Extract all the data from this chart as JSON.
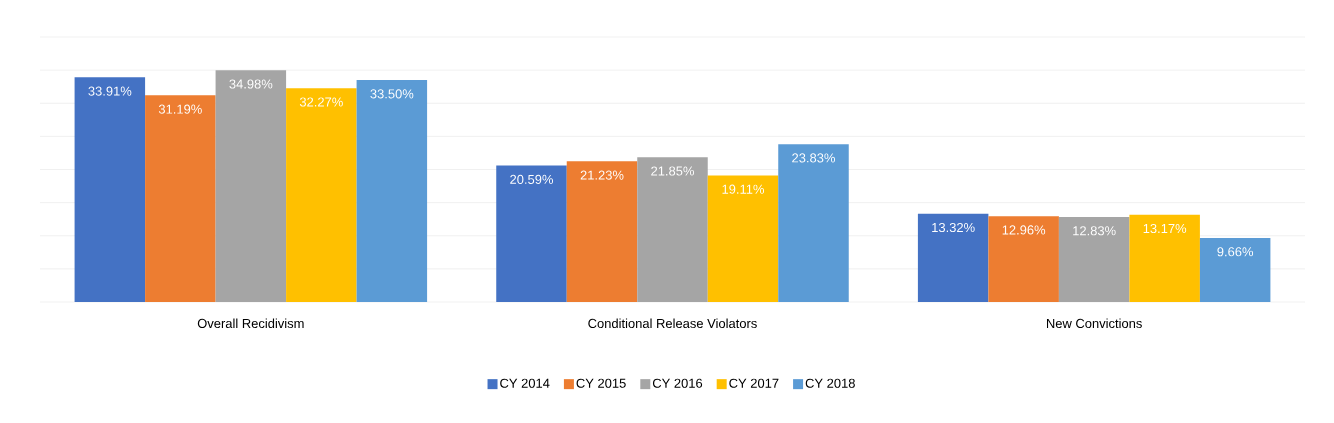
{
  "chart_data": {
    "type": "bar",
    "categories": [
      "Overall Recidivism",
      "Conditional Release Violators",
      "New Convictions"
    ],
    "series": [
      {
        "name": "CY 2014",
        "color": "#4472c4",
        "values": [
          33.91,
          20.59,
          13.32
        ],
        "value_labels": [
          "33.91%",
          "20.59%",
          "13.32%"
        ]
      },
      {
        "name": "CY 2015",
        "color": "#ed7d31",
        "values": [
          31.19,
          21.23,
          12.96
        ],
        "value_labels": [
          "31.19%",
          "21.23%",
          "12.96%"
        ]
      },
      {
        "name": "CY 2016",
        "color": "#a5a5a5",
        "values": [
          34.98,
          21.85,
          12.83
        ],
        "value_labels": [
          "34.98%",
          "21.85%",
          "12.83%"
        ]
      },
      {
        "name": "CY 2017",
        "color": "#ffc000",
        "values": [
          32.27,
          19.11,
          13.17
        ],
        "value_labels": [
          "32.27%",
          "19.11%",
          "13.17%"
        ]
      },
      {
        "name": "CY 2018",
        "color": "#5b9bd5",
        "values": [
          33.5,
          23.83,
          9.66
        ],
        "value_labels": [
          "33.50%",
          "23.83%",
          "9.66%"
        ]
      }
    ],
    "ylim": [
      0,
      40
    ],
    "yticks": [
      {
        "value": 0,
        "label": null
      },
      {
        "value": 5,
        "label": null
      },
      {
        "value": 10,
        "label": null
      },
      {
        "value": 15,
        "label": null
      },
      {
        "value": 20,
        "label": null
      },
      {
        "value": 25,
        "label": null
      },
      {
        "value": 30,
        "label": null
      },
      {
        "value": 35,
        "label": null
      },
      {
        "value": 40,
        "label": null
      }
    ],
    "grid": "y",
    "legend": "bottom",
    "tick_labels": "x"
  }
}
